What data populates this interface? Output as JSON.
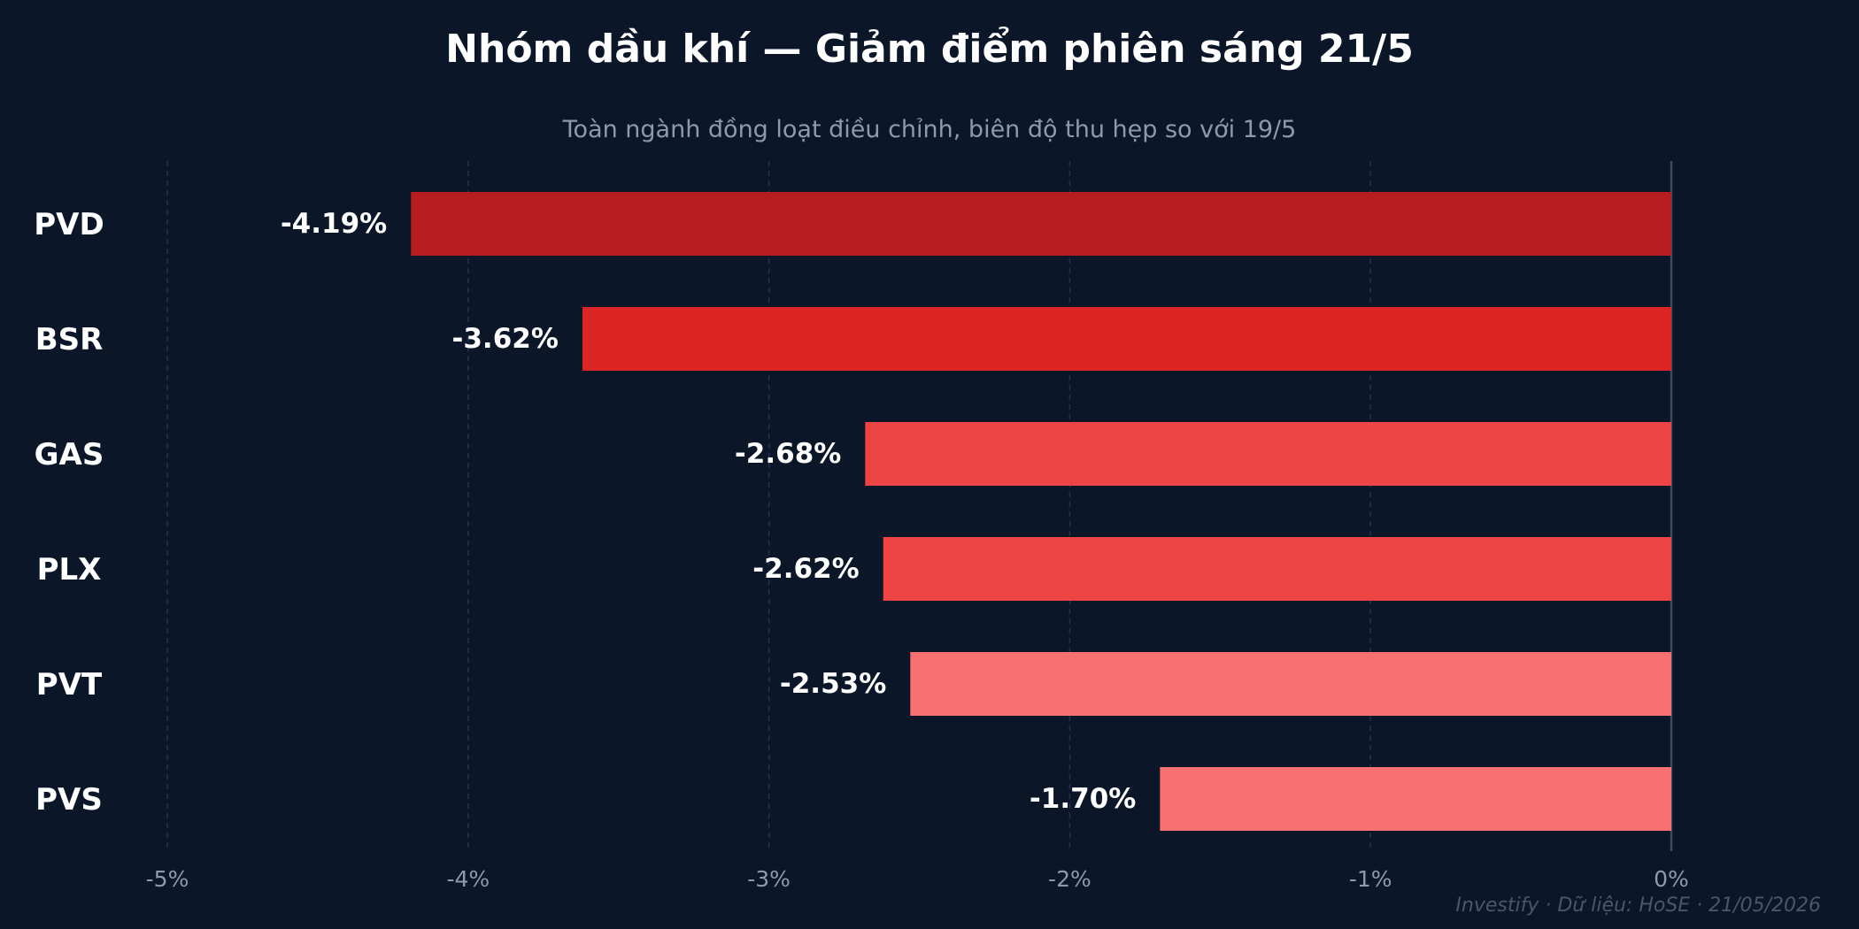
{
  "chart_data": {
    "type": "bar",
    "orientation": "horizontal",
    "title": "Nhóm dầu khí — Giảm điểm phiên sáng 21/5",
    "subtitle": "Toàn ngành đồng loạt điều chỉnh, biên độ thu hẹp so với 19/5",
    "categories": [
      "PVD",
      "BSR",
      "GAS",
      "PLX",
      "PVT",
      "PVS"
    ],
    "values": [
      -4.19,
      -3.62,
      -2.68,
      -2.62,
      -2.53,
      -1.7
    ],
    "value_labels": [
      "-4.19%",
      "-3.62%",
      "-2.68%",
      "-2.62%",
      "-2.53%",
      "-1.70%"
    ],
    "bar_colors": [
      "#b71c1f",
      "#dc2626",
      "#ef4444",
      "#ef4444",
      "#f87171",
      "#f87171"
    ],
    "xlim": [
      -5,
      0
    ],
    "xticks": [
      -5,
      -4,
      -3,
      -2,
      -1,
      0
    ],
    "xtick_labels": [
      "-5%",
      "-4%",
      "-3%",
      "-2%",
      "-1%",
      "0%"
    ],
    "grid": "vertical dashed",
    "legend": "none",
    "footer": "Investify · Dữ liệu: HoSE · 21/05/2026"
  },
  "colors": {
    "background": "#0b1628",
    "text": "#ffffff",
    "muted_text": "#8e9aab",
    "grid": "#1e3352"
  }
}
